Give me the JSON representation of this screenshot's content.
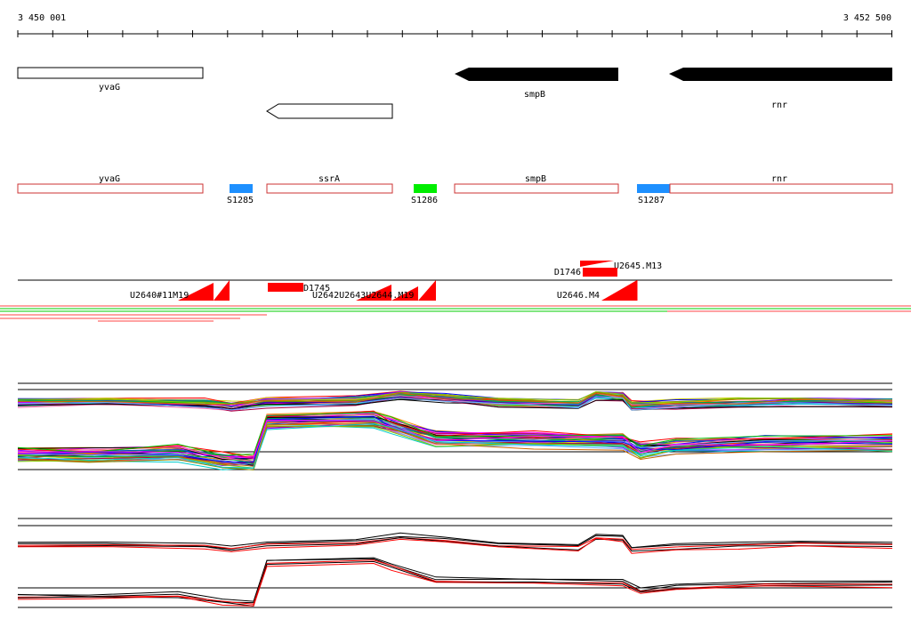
{
  "coords": {
    "start": "3 450 001",
    "end": "3 452 500"
  },
  "genes": [
    {
      "name": "yvaG",
      "style": "open"
    },
    {
      "name": "ssrA",
      "style": "open-arrow"
    },
    {
      "name": "smpB",
      "style": "filled-arrow"
    },
    {
      "name": "rnr",
      "style": "filled-arrow"
    }
  ],
  "transcripts": [
    "yvaG",
    "ssrA",
    "smpB",
    "rnr"
  ],
  "segments": [
    {
      "name": "S1285",
      "color": "#1E90FF"
    },
    {
      "name": "S1286",
      "color": "#00EE00"
    },
    {
      "name": "S1287",
      "color": "#1E90FF"
    }
  ],
  "features": {
    "U2645.M13": "U2645.M13",
    "D1746": "D1746",
    "D1745": "D1745",
    "U2646.M4": "U2646.M4",
    "left_cluster": "U2640#11M19",
    "mid_cluster": "U2642U2643U2644.M19"
  },
  "colors": {
    "feature_red": "#FF0000",
    "gene_box": "#CC3333",
    "track_green": "#00CC00"
  }
}
